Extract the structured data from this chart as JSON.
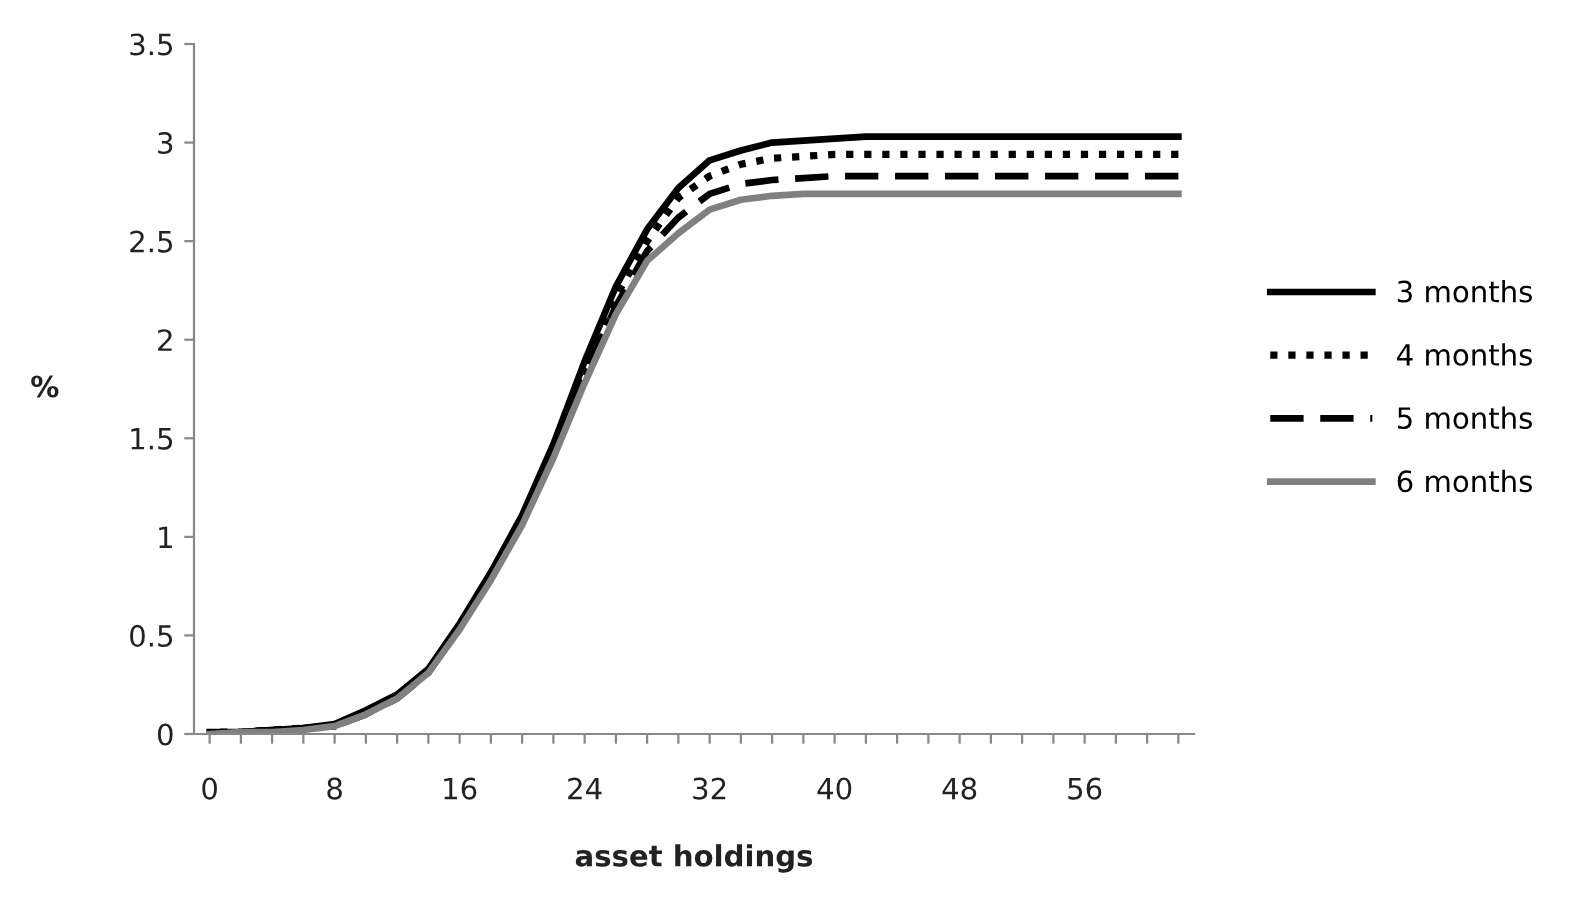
{
  "chart_data": {
    "type": "line",
    "xlabel": "asset holdings",
    "ylabel": "%",
    "categories": [
      "0",
      null,
      null,
      null,
      "8",
      null,
      null,
      null,
      "16",
      null,
      null,
      null,
      "24",
      null,
      null,
      null,
      "32",
      null,
      null,
      null,
      "40",
      null,
      null,
      null,
      "48",
      null,
      null,
      null,
      "56",
      null,
      null,
      null
    ],
    "ylim": [
      0,
      3.5
    ],
    "yticks": [
      0,
      0.5,
      1,
      1.5,
      2,
      2.5,
      3,
      3.5
    ],
    "grid": false,
    "legend": "right",
    "marker": "none",
    "series": [
      {
        "name": "3 months",
        "color": "#000000",
        "line_style": "solid",
        "values": [
          0.01,
          0.01,
          0.02,
          0.03,
          0.05,
          0.12,
          0.2,
          0.33,
          0.56,
          0.82,
          1.11,
          1.47,
          1.89,
          2.27,
          2.56,
          2.77,
          2.91,
          2.96,
          3.0,
          3.01,
          3.02,
          3.03,
          3.03,
          3.03,
          3.03,
          3.03,
          3.03,
          3.03,
          3.03,
          3.03,
          3.03,
          3.03
        ]
      },
      {
        "name": "4 months",
        "color": "#000000",
        "line_style": "dotted",
        "values": [
          0.01,
          0.01,
          0.02,
          0.03,
          0.04,
          0.11,
          0.19,
          0.32,
          0.55,
          0.8,
          1.09,
          1.44,
          1.85,
          2.22,
          2.5,
          2.72,
          2.83,
          2.89,
          2.92,
          2.93,
          2.94,
          2.94,
          2.94,
          2.94,
          2.94,
          2.94,
          2.94,
          2.94,
          2.94,
          2.94,
          2.94,
          2.94
        ]
      },
      {
        "name": "5 months",
        "color": "#000000",
        "line_style": "dashed",
        "values": [
          0.0,
          0.01,
          0.02,
          0.03,
          0.04,
          0.1,
          0.18,
          0.31,
          0.54,
          0.79,
          1.08,
          1.42,
          1.82,
          2.17,
          2.45,
          2.62,
          2.74,
          2.79,
          2.81,
          2.82,
          2.83,
          2.83,
          2.83,
          2.83,
          2.83,
          2.83,
          2.83,
          2.83,
          2.83,
          2.83,
          2.83,
          2.83
        ]
      },
      {
        "name": "6 months",
        "color": "#808080",
        "line_style": "solid",
        "values": [
          0.0,
          0.01,
          0.01,
          0.02,
          0.04,
          0.1,
          0.18,
          0.31,
          0.53,
          0.78,
          1.06,
          1.4,
          1.78,
          2.13,
          2.4,
          2.54,
          2.66,
          2.71,
          2.73,
          2.74,
          2.74,
          2.74,
          2.74,
          2.74,
          2.74,
          2.74,
          2.74,
          2.74,
          2.74,
          2.74,
          2.74,
          2.74
        ]
      }
    ]
  }
}
